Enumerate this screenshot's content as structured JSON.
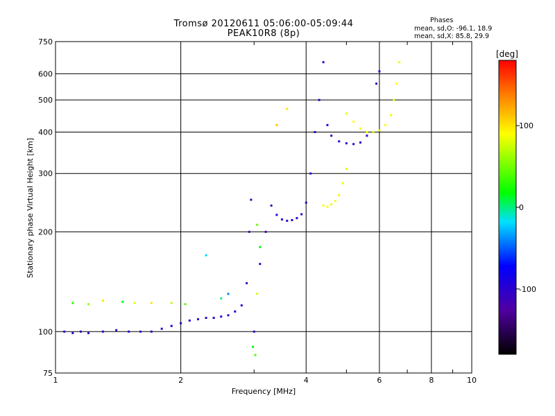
{
  "header": {
    "title_line1": "Tromsø 20120611 05:06:00-05:09:44",
    "title_line2": "PEAK10R8 (8p)",
    "phases_title": "Phases",
    "phases_o": "mean, sd,O: -96.1, 18.9",
    "phases_x": "mean, sd,X:  85.8, 29.9"
  },
  "chart_data": {
    "type": "scatter",
    "xlabel": "Frequency [MHz]",
    "ylabel": "Stationary phase Virtual Height [km]",
    "xscale": "log",
    "yscale": "log",
    "xlim": [
      1,
      10
    ],
    "ylim": [
      75,
      750
    ],
    "x_ticks": [
      1,
      2,
      4,
      6,
      8,
      10
    ],
    "y_ticks": [
      75,
      100,
      200,
      300,
      400,
      500,
      600,
      750
    ],
    "grid": true,
    "colorbar": {
      "label": "[deg]",
      "range": [
        -180,
        180
      ],
      "ticks": [
        100,
        0,
        -100
      ]
    },
    "series": [
      {
        "mode": "O",
        "mean_phase": -96.1,
        "sd_phase": 18.9,
        "points": [
          [
            1.05,
            100,
            -100
          ],
          [
            1.1,
            99,
            -95
          ],
          [
            1.15,
            100,
            -105
          ],
          [
            1.2,
            99,
            -100
          ],
          [
            1.3,
            100,
            -98
          ],
          [
            1.4,
            101,
            -102
          ],
          [
            1.5,
            100,
            -100
          ],
          [
            1.6,
            100,
            -97
          ],
          [
            1.7,
            100,
            -103
          ],
          [
            1.8,
            102,
            -100
          ],
          [
            1.9,
            104,
            -99
          ],
          [
            2.0,
            106,
            -101
          ],
          [
            2.1,
            108,
            -96
          ],
          [
            2.2,
            109,
            -104
          ],
          [
            2.3,
            110,
            -100
          ],
          [
            2.4,
            110,
            -98
          ],
          [
            2.5,
            111,
            -102
          ],
          [
            2.6,
            112,
            -100
          ],
          [
            2.7,
            115,
            -95
          ],
          [
            2.8,
            120,
            -100
          ],
          [
            2.88,
            140,
            -110
          ],
          [
            2.92,
            200,
            -120
          ],
          [
            2.95,
            250,
            -110
          ],
          [
            3.0,
            100,
            -100
          ],
          [
            3.1,
            160,
            -110
          ],
          [
            3.2,
            200,
            -120
          ],
          [
            3.3,
            240,
            -110
          ],
          [
            3.4,
            225,
            -95
          ],
          [
            3.5,
            218,
            -100
          ],
          [
            3.6,
            216,
            -102
          ],
          [
            3.7,
            217,
            -98
          ],
          [
            3.8,
            220,
            -100
          ],
          [
            3.9,
            226,
            -97
          ],
          [
            4.0,
            245,
            -100
          ],
          [
            4.1,
            300,
            -105
          ],
          [
            4.2,
            400,
            -100
          ],
          [
            4.3,
            500,
            -98
          ],
          [
            4.4,
            650,
            -100
          ],
          [
            4.5,
            420,
            -97
          ],
          [
            4.6,
            390,
            -100
          ],
          [
            4.8,
            375,
            -103
          ],
          [
            5.0,
            370,
            -100
          ],
          [
            5.2,
            368,
            -98
          ],
          [
            5.4,
            372,
            -100
          ],
          [
            5.6,
            390,
            -102
          ],
          [
            5.9,
            560,
            -100
          ],
          [
            6.0,
            610,
            -100
          ]
        ]
      },
      {
        "mode": "X",
        "mean_phase": 85.8,
        "sd_phase": 29.9,
        "points": [
          [
            4.4,
            240,
            90
          ],
          [
            4.5,
            238,
            88
          ],
          [
            4.6,
            242,
            85
          ],
          [
            4.7,
            248,
            92
          ],
          [
            4.8,
            258,
            95
          ],
          [
            4.9,
            280,
            85
          ],
          [
            5.0,
            310,
            80
          ],
          [
            5.0,
            455,
            85
          ],
          [
            5.2,
            430,
            90
          ],
          [
            5.4,
            410,
            85
          ],
          [
            5.6,
            400,
            88
          ],
          [
            5.8,
            400,
            80
          ],
          [
            6.0,
            405,
            85
          ],
          [
            6.2,
            420,
            90
          ],
          [
            6.4,
            450,
            85
          ],
          [
            6.5,
            500,
            80
          ],
          [
            6.6,
            560,
            90
          ],
          [
            6.7,
            650,
            85
          ]
        ]
      },
      {
        "mode": "scattered",
        "points": [
          [
            1.1,
            122,
            30
          ],
          [
            1.2,
            121,
            60
          ],
          [
            1.3,
            124,
            100
          ],
          [
            1.45,
            123,
            20
          ],
          [
            1.55,
            122,
            80
          ],
          [
            1.7,
            122,
            100
          ],
          [
            1.9,
            122,
            70
          ],
          [
            2.05,
            121,
            40
          ],
          [
            2.3,
            170,
            -20
          ],
          [
            2.5,
            126,
            0
          ],
          [
            2.6,
            130,
            -40
          ],
          [
            2.98,
            90,
            20
          ],
          [
            3.02,
            85,
            40
          ],
          [
            3.05,
            130,
            80
          ],
          [
            3.05,
            210,
            50
          ],
          [
            3.1,
            180,
            20
          ],
          [
            3.4,
            420,
            110
          ],
          [
            3.6,
            470,
            100
          ]
        ]
      }
    ]
  }
}
